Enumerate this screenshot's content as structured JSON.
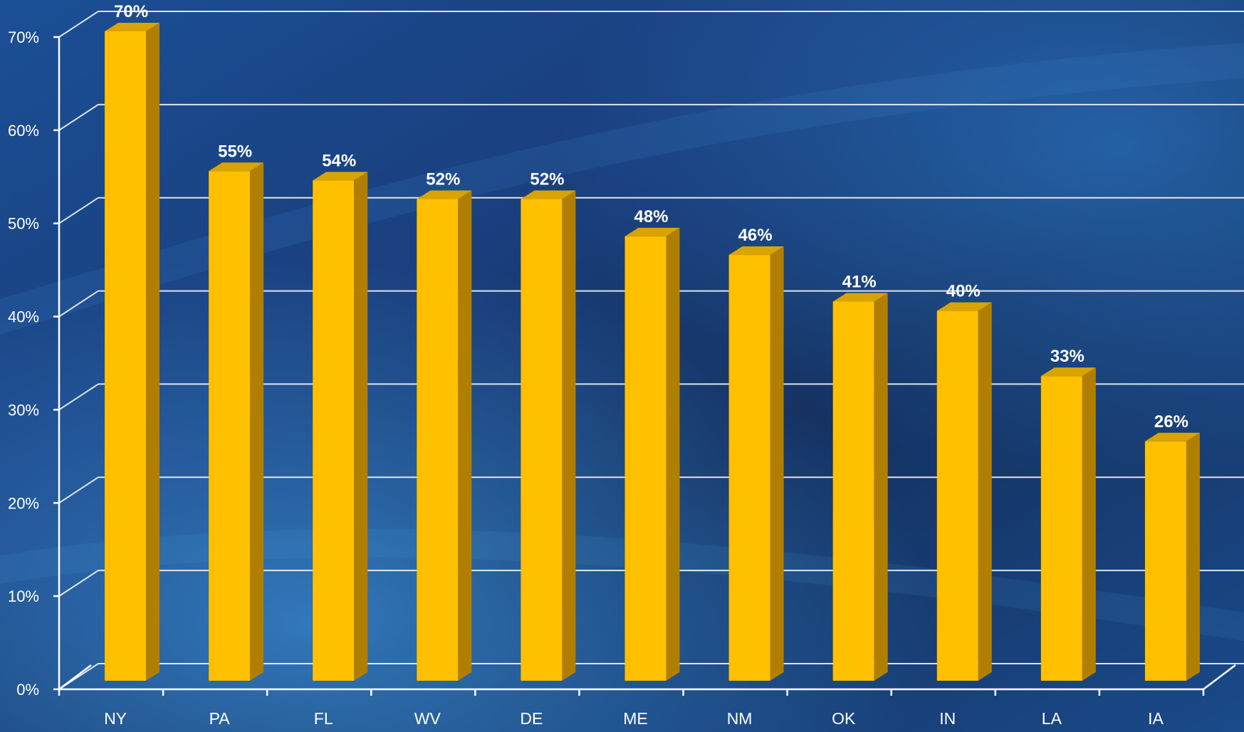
{
  "colors": {
    "bar_front": "#FFC000",
    "bar_side": "#B07F00",
    "bar_top": "#D9A300",
    "background_dark": "#0f2450",
    "background_light": "#2a76c4",
    "grid": "#ffffff"
  },
  "chart_data": {
    "type": "bar",
    "title": "",
    "xlabel": "",
    "ylabel": "",
    "categories": [
      "NY",
      "PA",
      "FL",
      "WV",
      "DE",
      "ME",
      "NM",
      "OK",
      "IN",
      "LA",
      "IA"
    ],
    "values": [
      70,
      55,
      54,
      52,
      52,
      48,
      46,
      41,
      40,
      33,
      26
    ],
    "data_labels": [
      "70%",
      "55%",
      "54%",
      "52%",
      "52%",
      "48%",
      "46%",
      "41%",
      "40%",
      "33%",
      "26%"
    ],
    "ylim": [
      0,
      70
    ],
    "yticks": [
      0,
      10,
      20,
      30,
      40,
      50,
      60,
      70
    ],
    "ytick_labels": [
      "0%",
      "10%",
      "20%",
      "30%",
      "40%",
      "50%",
      "60%",
      "70%"
    ],
    "grid": true,
    "legend": "none",
    "style": "3d-column"
  }
}
